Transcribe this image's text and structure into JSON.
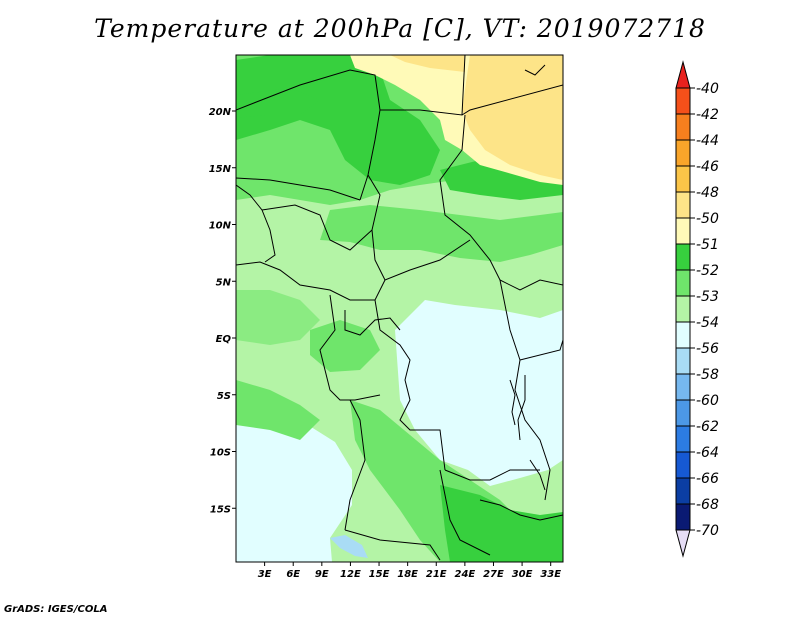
{
  "title": "Temperature at 200hPa [C], VT: 2019072718",
  "credit": "GrADS: IGES/COLA",
  "map": {
    "lon_labels": [
      "3E",
      "6E",
      "9E",
      "12E",
      "15E",
      "18E",
      "21E",
      "24E",
      "27E",
      "30E",
      "33E"
    ],
    "lat_labels": [
      "20N",
      "15N",
      "10N",
      "5N",
      "EQ",
      "5S",
      "10S",
      "15S"
    ]
  },
  "colorbar": {
    "labels": [
      "-40",
      "-42",
      "-44",
      "-46",
      "-48",
      "-50",
      "-51",
      "-52",
      "-53",
      "-54",
      "-56",
      "-58",
      "-60",
      "-62",
      "-64",
      "-66",
      "-68",
      "-70"
    ],
    "colors": [
      "#e8221e",
      "#f5501a",
      "#f77f1e",
      "#f9a52a",
      "#fbc548",
      "#fde488",
      "#fffab8",
      "#37d03e",
      "#6fe56b",
      "#b4f4a6",
      "#e1feff",
      "#a9dcf5",
      "#76b8ef",
      "#4c98e6",
      "#2c7ce3",
      "#1659d3",
      "#0b3ea3",
      "#0a1a73",
      "#e6ddf6"
    ]
  },
  "chart_data": {
    "type": "heatmap",
    "title": "Temperature at 200hPa [C], VT: 2019072718",
    "variable": "Temperature at 200hPa",
    "units": "C",
    "valid_time": "2019072718",
    "lon_ticks": [
      "3E",
      "6E",
      "9E",
      "12E",
      "15E",
      "18E",
      "21E",
      "24E",
      "27E",
      "30E",
      "33E"
    ],
    "lat_ticks": [
      "20N",
      "15N",
      "10N",
      "5N",
      "EQ",
      "5S",
      "10S",
      "15S"
    ],
    "contour_levels": [
      -40,
      -42,
      -44,
      -46,
      -48,
      -50,
      -51,
      -52,
      -53,
      -54,
      -56,
      -58,
      -60,
      -62,
      -64,
      -66,
      -68,
      -70
    ]
  }
}
